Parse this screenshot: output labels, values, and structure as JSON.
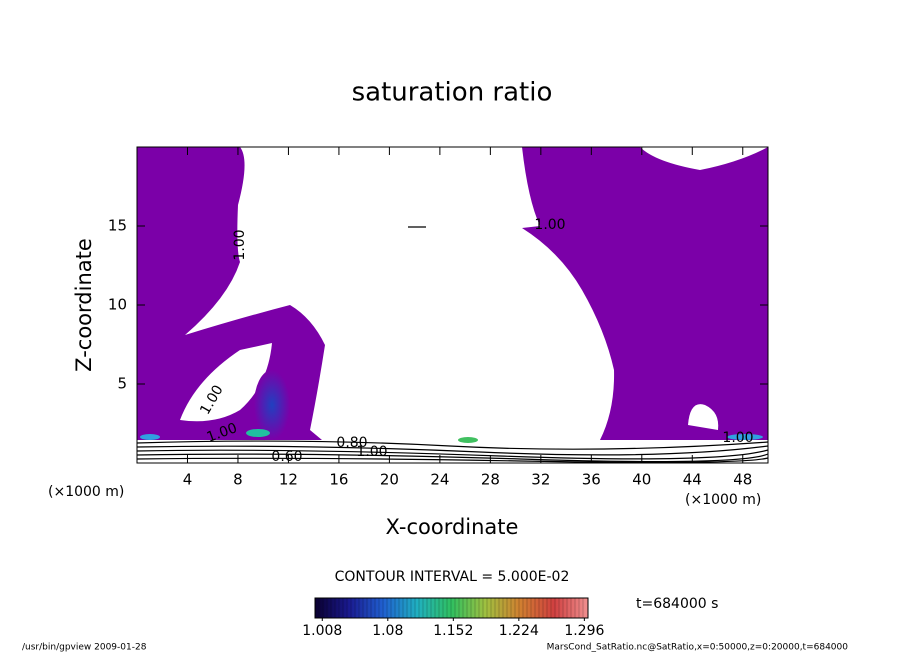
{
  "chart_data": {
    "type": "contour",
    "title": "saturation ratio",
    "x_label": "X-coordinate",
    "y_label": "Z-coordinate",
    "x_unit": "(×1000 m)",
    "xlim": [
      0,
      50
    ],
    "xticks": [
      4,
      8,
      12,
      16,
      20,
      24,
      28,
      32,
      36,
      40,
      44,
      48
    ],
    "ylim": [
      0,
      20
    ],
    "yticks": [
      5,
      10,
      15
    ],
    "fill_color": "#7b00a8",
    "contour_labels": [
      "1.00",
      "1.00",
      "1.00",
      "1.00",
      "1.00",
      "0.60",
      "0.80",
      "1.00"
    ],
    "contour_interval": "CONTOUR INTERVAL = 5.000E-02",
    "time": "t=684000 s",
    "colorbar": {
      "lim": [
        1.0,
        1.3
      ],
      "ticks": [
        1.008,
        1.08,
        1.152,
        1.224,
        1.296
      ],
      "colors": [
        "#0a0030",
        "#1a1a90",
        "#2060d0",
        "#20b0c0",
        "#30c060",
        "#a0c040",
        "#d08030",
        "#d04040",
        "#f09090"
      ]
    },
    "footer_left": "/usr/bin/gpview  2009-01-28",
    "footer_right": "MarsCond_SatRatio.nc@SatRatio,x=0:50000,z=0:20000,t=684000"
  }
}
